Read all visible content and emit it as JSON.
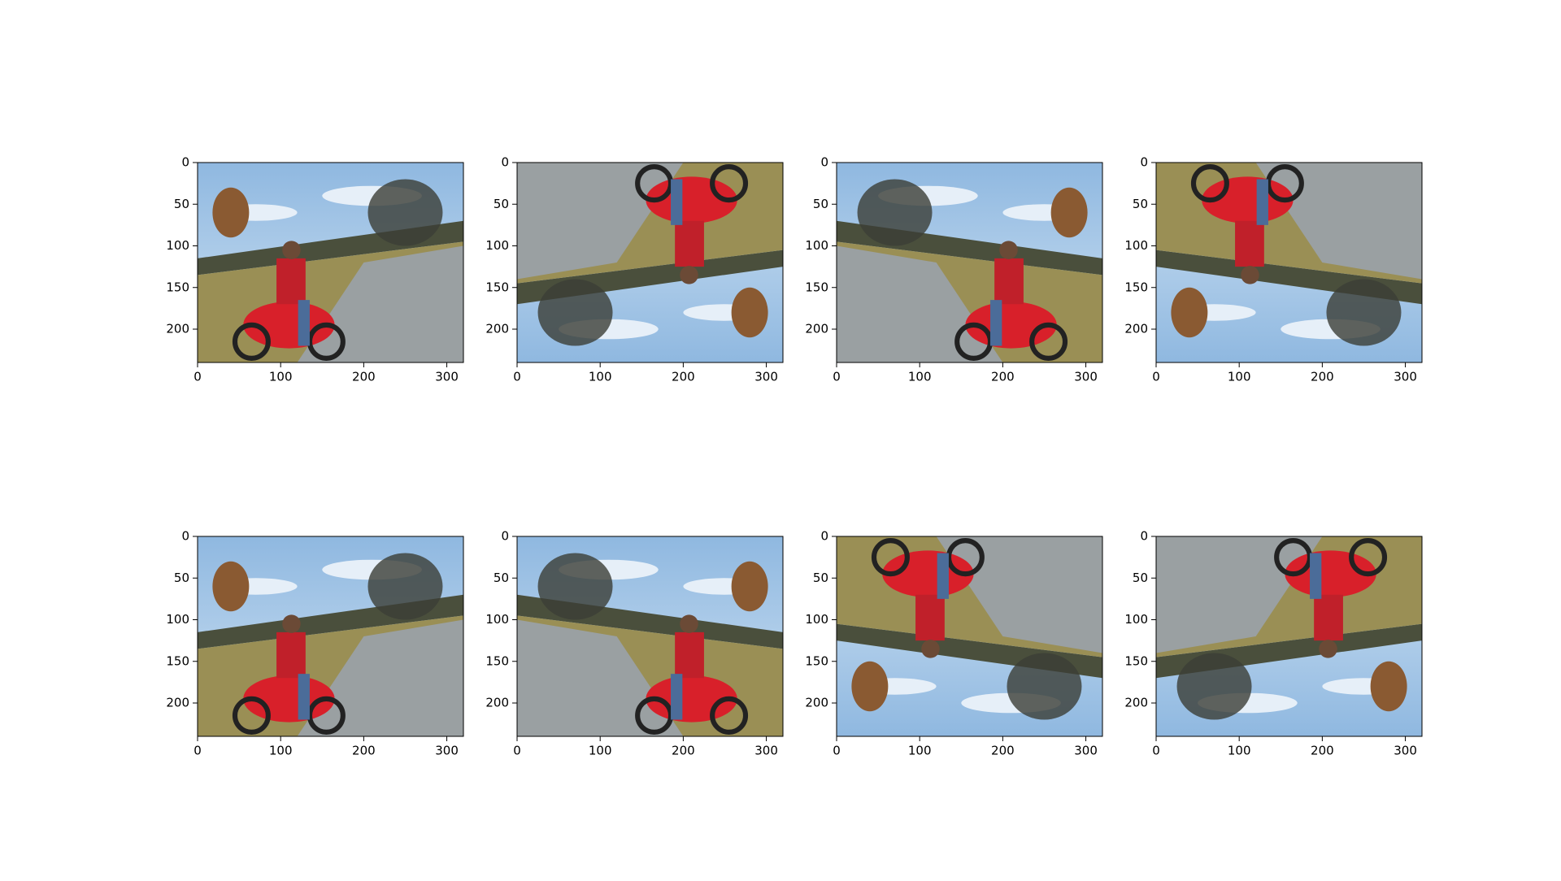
{
  "chart_data": [
    {
      "type": "image",
      "xlim": [
        0,
        320
      ],
      "ylim": [
        240,
        0
      ],
      "xticks": [
        0,
        100,
        200,
        300
      ],
      "yticks": [
        0,
        50,
        100,
        150,
        200
      ]
    },
    {
      "type": "image",
      "xlim": [
        0,
        320
      ],
      "ylim": [
        240,
        0
      ],
      "xticks": [
        0,
        100,
        200,
        300
      ],
      "yticks": [
        0,
        50,
        100,
        150,
        200
      ]
    },
    {
      "type": "image",
      "xlim": [
        0,
        320
      ],
      "ylim": [
        240,
        0
      ],
      "xticks": [
        0,
        100,
        200,
        300
      ],
      "yticks": [
        0,
        50,
        100,
        150,
        200
      ]
    },
    {
      "type": "image",
      "xlim": [
        0,
        320
      ],
      "ylim": [
        240,
        0
      ],
      "xticks": [
        0,
        100,
        200,
        300
      ],
      "yticks": [
        0,
        50,
        100,
        150,
        200
      ]
    },
    {
      "type": "image",
      "xlim": [
        0,
        320
      ],
      "ylim": [
        240,
        0
      ],
      "xticks": [
        0,
        100,
        200,
        300
      ],
      "yticks": [
        0,
        50,
        100,
        150,
        200
      ]
    },
    {
      "type": "image",
      "xlim": [
        0,
        320
      ],
      "ylim": [
        240,
        0
      ],
      "xticks": [
        0,
        100,
        200,
        300
      ],
      "yticks": [
        0,
        50,
        100,
        150,
        200
      ]
    },
    {
      "type": "image",
      "xlim": [
        0,
        320
      ],
      "ylim": [
        240,
        0
      ],
      "xticks": [
        0,
        100,
        200,
        300
      ],
      "yticks": [
        0,
        50,
        100,
        150,
        200
      ]
    },
    {
      "type": "image",
      "xlim": [
        0,
        320
      ],
      "ylim": [
        240,
        0
      ],
      "xticks": [
        0,
        100,
        200,
        300
      ],
      "yticks": [
        0,
        50,
        100,
        150,
        200
      ]
    }
  ]
}
